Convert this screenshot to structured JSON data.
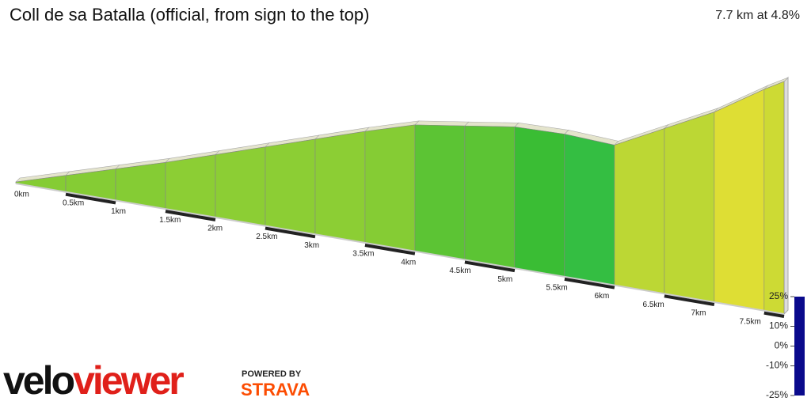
{
  "chart_data": {
    "type": "profile",
    "title": "Coll de sa Batalla (official, from sign to the top)",
    "summary": "7.7 km at 4.8%",
    "x": [
      0,
      0.5,
      1,
      1.5,
      2,
      2.5,
      3,
      3.5,
      4,
      4.5,
      5,
      5.5,
      6,
      6.5,
      7,
      7.5,
      7.7
    ],
    "values": [
      0,
      24,
      48,
      72,
      98,
      124,
      150,
      176,
      200,
      212,
      224,
      226,
      222,
      262,
      302,
      352,
      370
    ],
    "xlim": [
      0,
      7.7
    ],
    "xticks": [
      {
        "value": 0,
        "label": "0km"
      },
      {
        "value": 0.5,
        "label": "0.5km"
      },
      {
        "value": 1,
        "label": "1km"
      },
      {
        "value": 1.5,
        "label": "1.5km"
      },
      {
        "value": 2,
        "label": "2km"
      },
      {
        "value": 2.5,
        "label": "2.5km"
      },
      {
        "value": 3,
        "label": "3km"
      },
      {
        "value": 3.5,
        "label": "3.5km"
      },
      {
        "value": 4,
        "label": "4km"
      },
      {
        "value": 4.5,
        "label": "4.5km"
      },
      {
        "value": 5,
        "label": "5km"
      },
      {
        "value": 5.5,
        "label": "5.5km"
      },
      {
        "value": 6,
        "label": "6km"
      },
      {
        "value": 6.5,
        "label": "6.5km"
      },
      {
        "value": 7,
        "label": "7km"
      },
      {
        "value": 7.5,
        "label": "7.5km"
      }
    ],
    "colorbar": {
      "lim": [
        -25,
        25
      ],
      "stops": [
        {
          "value": -25,
          "color": "#0a0a8c"
        },
        {
          "value": -10,
          "color": "#16d4e6"
        },
        {
          "value": 0,
          "color": "#10b010"
        },
        {
          "value": 10,
          "color": "#d8d810"
        },
        {
          "value": 17,
          "color": "#e63a10"
        },
        {
          "value": 25,
          "color": "#5a0000"
        }
      ],
      "ticks": [
        {
          "value": 25,
          "label": "25%"
        },
        {
          "value": 10,
          "label": "10%"
        },
        {
          "value": 0,
          "label": "0%"
        },
        {
          "value": -10,
          "label": "-10%"
        },
        {
          "value": -25,
          "label": "-25%"
        }
      ]
    }
  },
  "logo": {
    "part1": "velo",
    "part2": "viewer",
    "powered": "POWERED BY",
    "strava": "STRAVA"
  }
}
